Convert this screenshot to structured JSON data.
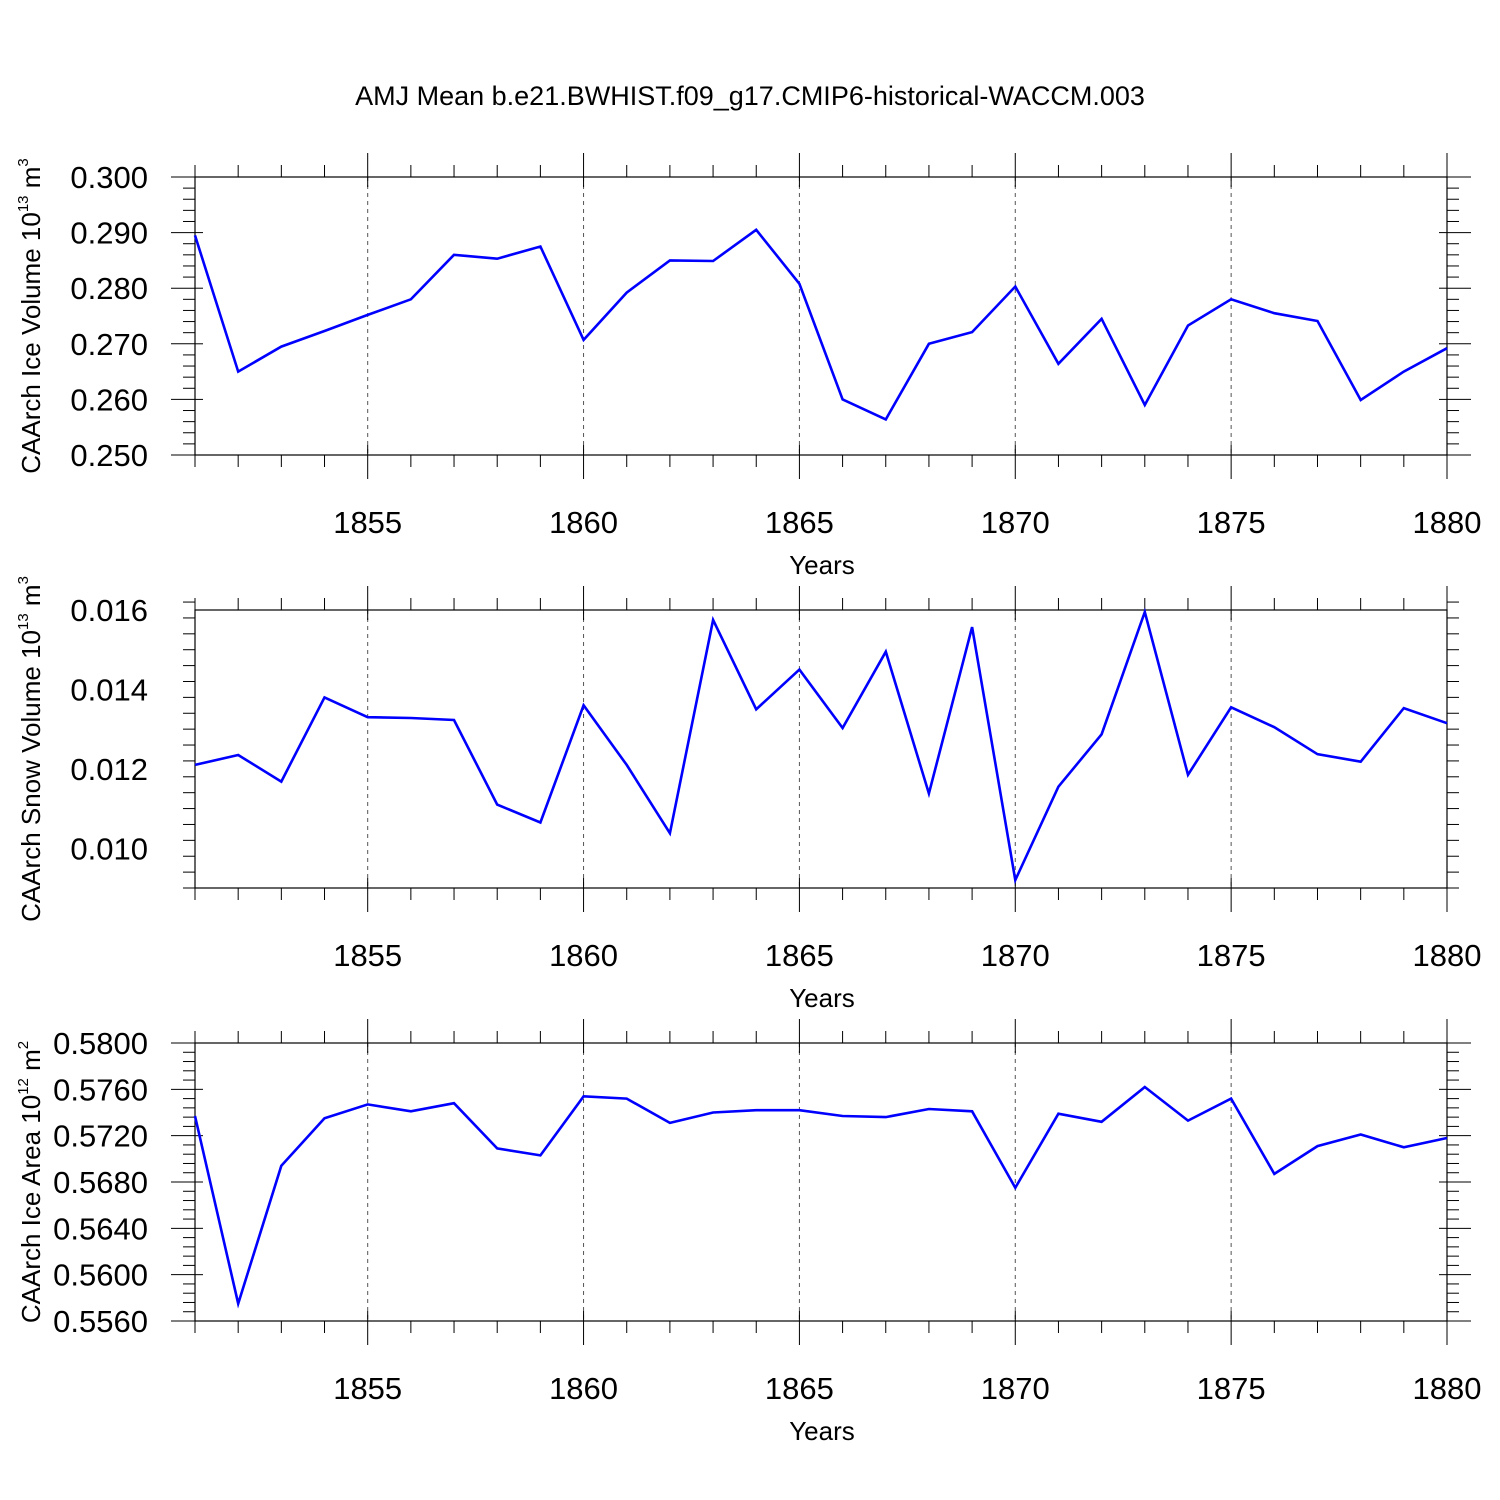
{
  "title": "AMJ Mean b.e21.BWHIST.f09_g17.CMIP6-historical-WACCM.003",
  "colors": {
    "line": "#0000ff",
    "axis": "#000000",
    "grid": "#555555"
  },
  "chart_data": [
    {
      "type": "line",
      "ylabel": {
        "text": "CAArch Ice Volume 10",
        "sup": "13",
        "unit": " m",
        "unit_sup": "3"
      },
      "xlabel": "Years",
      "xlim": [
        1851,
        1880
      ],
      "ylim": [
        0.25,
        0.3
      ],
      "yticks": [
        0.25,
        0.26,
        0.27,
        0.28,
        0.29,
        0.3
      ],
      "ytick_labels": [
        "0.250",
        "0.260",
        "0.270",
        "0.280",
        "0.290",
        "0.300"
      ],
      "xticks": [
        1855,
        1860,
        1865,
        1870,
        1875,
        1880
      ],
      "xtick_labels": [
        "1855",
        "1860",
        "1865",
        "1870",
        "1875",
        "1880"
      ],
      "grid": "vertical dashed at major x ticks",
      "x": [
        1851,
        1852,
        1853,
        1854,
        1855,
        1856,
        1857,
        1858,
        1859,
        1860,
        1861,
        1862,
        1863,
        1864,
        1865,
        1866,
        1867,
        1868,
        1869,
        1870,
        1871,
        1872,
        1873,
        1874,
        1875,
        1876,
        1877,
        1878,
        1879,
        1880
      ],
      "y": [
        0.2895,
        0.265,
        0.2695,
        0.2723,
        0.2752,
        0.278,
        0.286,
        0.2853,
        0.2875,
        0.2707,
        0.2792,
        0.285,
        0.2849,
        0.2905,
        0.2808,
        0.26,
        0.2564,
        0.27,
        0.2721,
        0.2803,
        0.2664,
        0.2745,
        0.259,
        0.2733,
        0.278,
        0.2755,
        0.2741,
        0.2599,
        0.265,
        0.2692
      ]
    },
    {
      "type": "line",
      "ylabel": {
        "text": "CAArch Snow Volume 10",
        "sup": "13",
        "unit": " m",
        "unit_sup": "3"
      },
      "xlabel": "Years",
      "xlim": [
        1851,
        1880
      ],
      "ylim": [
        0.009,
        0.016
      ],
      "yticks": [
        0.01,
        0.012,
        0.014,
        0.016
      ],
      "ytick_labels": [
        "0.010",
        "0.012",
        "0.014",
        "0.016"
      ],
      "xticks": [
        1855,
        1860,
        1865,
        1870,
        1875,
        1880
      ],
      "xtick_labels": [
        "1855",
        "1860",
        "1865",
        "1870",
        "1875",
        "1880"
      ],
      "grid": "vertical dashed at major x ticks",
      "x": [
        1851,
        1852,
        1853,
        1854,
        1855,
        1856,
        1857,
        1858,
        1859,
        1860,
        1861,
        1862,
        1863,
        1864,
        1865,
        1866,
        1867,
        1868,
        1869,
        1870,
        1871,
        1872,
        1873,
        1874,
        1875,
        1876,
        1877,
        1878,
        1879,
        1880
      ],
      "y": [
        0.0121,
        0.01235,
        0.01168,
        0.0138,
        0.0133,
        0.01328,
        0.01323,
        0.0111,
        0.01065,
        0.0136,
        0.0121,
        0.01038,
        0.01575,
        0.0135,
        0.0145,
        0.01303,
        0.01495,
        0.01138,
        0.01557,
        0.0092,
        0.01155,
        0.01287,
        0.01595,
        0.01185,
        0.01355,
        0.01305,
        0.01237,
        0.01218,
        0.01353,
        0.01315
      ]
    },
    {
      "type": "line",
      "ylabel": {
        "text": "CAArch Ice Area 10",
        "sup": "12",
        "unit": " m",
        "unit_sup": "2"
      },
      "xlabel": "Years",
      "xlim": [
        1851,
        1880
      ],
      "ylim": [
        0.556,
        0.58
      ],
      "yticks": [
        0.556,
        0.56,
        0.564,
        0.568,
        0.572,
        0.576,
        0.58
      ],
      "ytick_labels": [
        "0.5560",
        "0.5600",
        "0.5640",
        "0.5680",
        "0.5720",
        "0.5760",
        "0.5800"
      ],
      "xticks": [
        1855,
        1860,
        1865,
        1870,
        1875,
        1880
      ],
      "xtick_labels": [
        "1855",
        "1860",
        "1865",
        "1870",
        "1875",
        "1880"
      ],
      "grid": "vertical dashed at major x ticks",
      "x": [
        1851,
        1852,
        1853,
        1854,
        1855,
        1856,
        1857,
        1858,
        1859,
        1860,
        1861,
        1862,
        1863,
        1864,
        1865,
        1866,
        1867,
        1868,
        1869,
        1870,
        1871,
        1872,
        1873,
        1874,
        1875,
        1876,
        1877,
        1878,
        1879,
        1880
      ],
      "y": [
        0.5737,
        0.5575,
        0.5694,
        0.5735,
        0.5747,
        0.5741,
        0.5748,
        0.5709,
        0.5703,
        0.5754,
        0.5752,
        0.5731,
        0.574,
        0.5742,
        0.5742,
        0.5737,
        0.5736,
        0.5743,
        0.5741,
        0.5675,
        0.5739,
        0.5732,
        0.5762,
        0.5733,
        0.5752,
        0.5687,
        0.5711,
        0.5721,
        0.571,
        0.5718
      ]
    }
  ]
}
